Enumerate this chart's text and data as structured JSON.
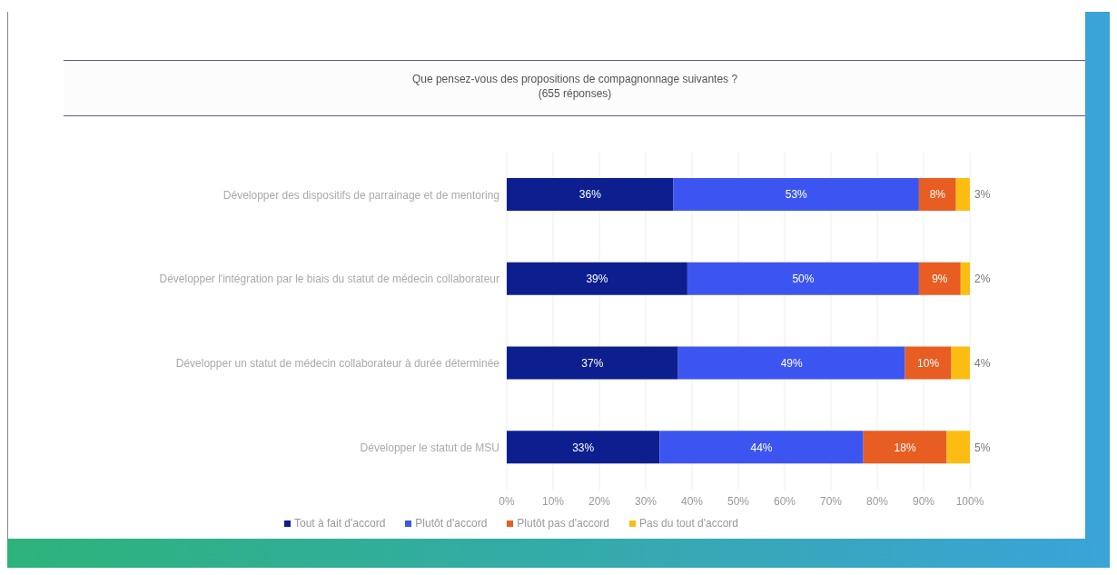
{
  "chart_data": {
    "type": "bar",
    "orientation": "horizontal",
    "stacked": true,
    "title": "Que pensez-vous des propositions de compagnonnage suivantes ?",
    "subtitle": "(655 réponses)",
    "categories": [
      "Développer des dispositifs de parrainage et de mentoring",
      "Développer l'intégration par le biais du statut de médecin collaborateur",
      "Développer un statut de médecin collaborateur à durée déterminée",
      "Développer le statut de MSU"
    ],
    "series": [
      {
        "name": "Tout à fait d'accord",
        "color": "#0d1f8f",
        "values": [
          36,
          39,
          37,
          33
        ],
        "value_labels": [
          "36%",
          "39%",
          "37%",
          "33%"
        ]
      },
      {
        "name": "Plutôt d'accord",
        "color": "#3d55f0",
        "values": [
          53,
          50,
          49,
          44
        ],
        "value_labels": [
          "53%",
          "50%",
          "49%",
          "44%"
        ]
      },
      {
        "name": "Plutôt pas d'accord",
        "color": "#e85d22",
        "values": [
          8,
          9,
          10,
          18
        ],
        "value_labels": [
          "8%",
          "9%",
          "10%",
          "18%"
        ]
      },
      {
        "name": "Pas du tout d'accord",
        "color": "#fbbd12",
        "values": [
          3,
          2,
          4,
          5
        ],
        "value_labels": [
          "3%",
          "2%",
          "4%",
          "5%"
        ]
      }
    ],
    "xlim": [
      0,
      100
    ],
    "xticks": [
      {
        "value": 0,
        "label": "0%"
      },
      {
        "value": 10,
        "label": "10%"
      },
      {
        "value": 20,
        "label": "20%"
      },
      {
        "value": 30,
        "label": "30%"
      },
      {
        "value": 40,
        "label": "40%"
      },
      {
        "value": 50,
        "label": "50%"
      },
      {
        "value": 60,
        "label": "60%"
      },
      {
        "value": 70,
        "label": "70%"
      },
      {
        "value": 80,
        "label": "80%"
      },
      {
        "value": 90,
        "label": "90%"
      },
      {
        "value": 100,
        "label": "100%"
      }
    ],
    "grid": "x",
    "legend": "bottom"
  }
}
